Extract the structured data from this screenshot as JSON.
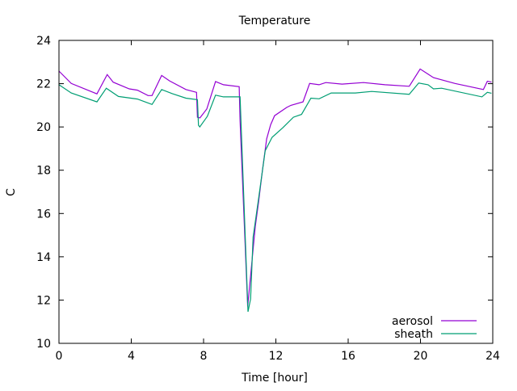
{
  "chart_data": {
    "type": "line",
    "title": "Temperature",
    "xlabel": "Time [hour]",
    "ylabel": "C",
    "xlim": [
      0,
      24
    ],
    "ylim": [
      10,
      24
    ],
    "xticks": [
      "0",
      "4",
      "8",
      "12",
      "16",
      "20",
      "24"
    ],
    "yticks": [
      "10",
      "12",
      "14",
      "16",
      "18",
      "20",
      "22",
      "24"
    ],
    "grid": false,
    "legend_position": "bottom-right",
    "series": [
      {
        "name": "aerosol",
        "color": "#9400d3",
        "points": [
          [
            0,
            22.58
          ],
          [
            0.68,
            22.01
          ],
          [
            2.1,
            21.53
          ],
          [
            2.67,
            22.42
          ],
          [
            3.0,
            22.07
          ],
          [
            3.89,
            21.76
          ],
          [
            4.34,
            21.7
          ],
          [
            4.93,
            21.45
          ],
          [
            5.15,
            21.45
          ],
          [
            5.68,
            22.38
          ],
          [
            6.12,
            22.13
          ],
          [
            7.02,
            21.73
          ],
          [
            7.61,
            21.6
          ],
          [
            7.66,
            20.45
          ],
          [
            7.8,
            20.42
          ],
          [
            8.18,
            20.83
          ],
          [
            8.66,
            22.1
          ],
          [
            9.1,
            21.95
          ],
          [
            9.97,
            21.86
          ],
          [
            10.02,
            20.27
          ],
          [
            10.44,
            11.7
          ],
          [
            10.86,
            15.4
          ],
          [
            11.04,
            16.5
          ],
          [
            11.26,
            18.0
          ],
          [
            11.49,
            19.45
          ],
          [
            11.71,
            20.1
          ],
          [
            11.93,
            20.52
          ],
          [
            12.6,
            20.9
          ],
          [
            12.83,
            21.0
          ],
          [
            13.5,
            21.16
          ],
          [
            13.87,
            22.01
          ],
          [
            14.39,
            21.95
          ],
          [
            14.76,
            22.05
          ],
          [
            15.66,
            21.98
          ],
          [
            16.85,
            22.05
          ],
          [
            18.04,
            21.95
          ],
          [
            19.38,
            21.88
          ],
          [
            19.98,
            22.68
          ],
          [
            20.42,
            22.44
          ],
          [
            20.72,
            22.28
          ],
          [
            21.91,
            22.01
          ],
          [
            23.48,
            21.73
          ],
          [
            23.7,
            22.11
          ],
          [
            23.93,
            22.07
          ]
        ]
      },
      {
        "name": "sheath",
        "color": "#009e73",
        "points": [
          [
            0,
            21.95
          ],
          [
            0.68,
            21.57
          ],
          [
            2.1,
            21.16
          ],
          [
            2.62,
            21.79
          ],
          [
            3.29,
            21.41
          ],
          [
            4.34,
            21.29
          ],
          [
            5.15,
            21.04
          ],
          [
            5.68,
            21.73
          ],
          [
            6.27,
            21.54
          ],
          [
            7.02,
            21.33
          ],
          [
            7.66,
            21.26
          ],
          [
            7.72,
            20.08
          ],
          [
            7.79,
            20.0
          ],
          [
            8.21,
            20.49
          ],
          [
            8.66,
            21.47
          ],
          [
            9.1,
            21.39
          ],
          [
            10.02,
            21.39
          ],
          [
            10.46,
            11.46
          ],
          [
            10.6,
            12.05
          ],
          [
            10.74,
            14.9
          ],
          [
            11.04,
            16.66
          ],
          [
            11.41,
            18.9
          ],
          [
            11.79,
            19.52
          ],
          [
            12.38,
            19.96
          ],
          [
            12.97,
            20.45
          ],
          [
            13.42,
            20.58
          ],
          [
            13.94,
            21.33
          ],
          [
            14.39,
            21.3
          ],
          [
            15.06,
            21.57
          ],
          [
            16.4,
            21.57
          ],
          [
            17.3,
            21.64
          ],
          [
            19.38,
            21.51
          ],
          [
            19.9,
            22.03
          ],
          [
            20.42,
            21.95
          ],
          [
            20.72,
            21.76
          ],
          [
            21.17,
            21.79
          ],
          [
            23.4,
            21.39
          ],
          [
            23.7,
            21.6
          ],
          [
            23.93,
            21.56
          ]
        ]
      }
    ]
  }
}
